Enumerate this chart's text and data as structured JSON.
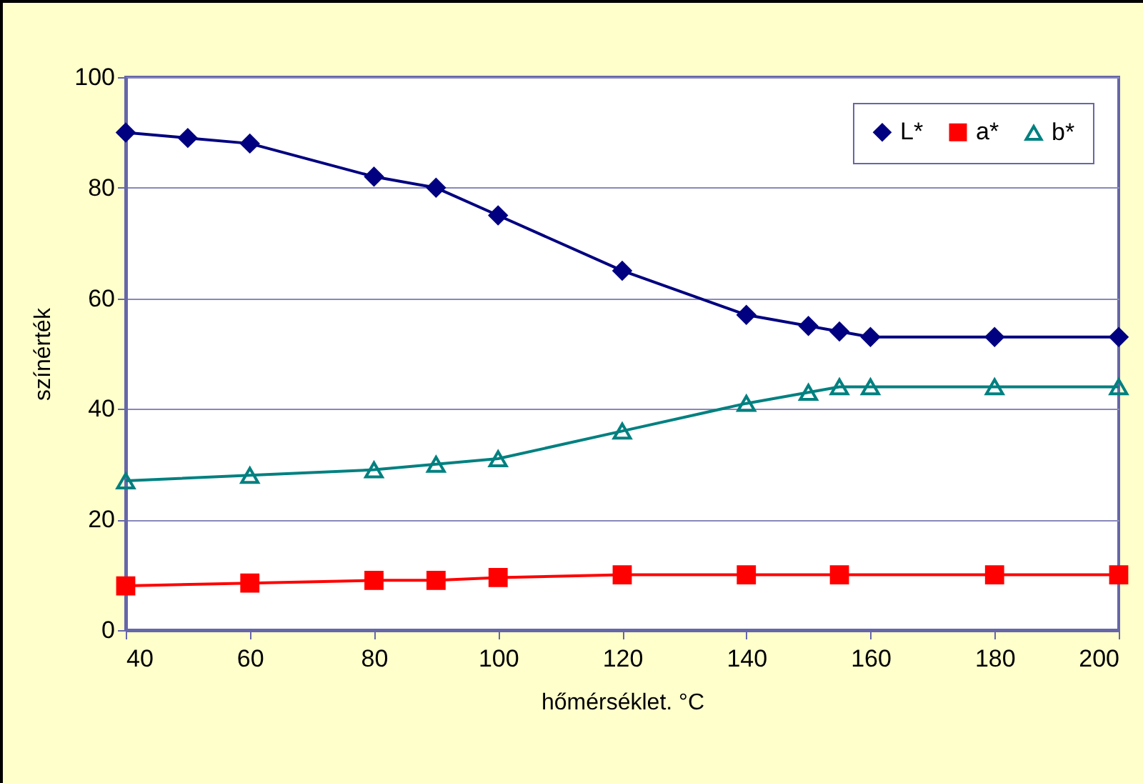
{
  "chart_data": {
    "type": "line",
    "xlabel": "hőmérséklet. °C",
    "ylabel": "színérték",
    "xlim": [
      40,
      200
    ],
    "xticks": [
      40,
      60,
      80,
      100,
      120,
      140,
      160,
      180,
      200
    ],
    "ylim": [
      0,
      100
    ],
    "yticks": [
      0,
      20,
      40,
      60,
      80,
      100
    ],
    "grid": "y",
    "legend": "top right",
    "line_style": "solid",
    "series": [
      {
        "name": "L*",
        "color": "#000080",
        "marker": "diamond",
        "x": [
          40,
          50,
          60,
          80,
          90,
          100,
          120,
          140,
          150,
          155,
          160,
          180,
          200
        ],
        "values": [
          90,
          89,
          88,
          82,
          80,
          75,
          65,
          57,
          55,
          54,
          53,
          53,
          53
        ]
      },
      {
        "name": "a*",
        "color": "#ff0000",
        "marker": "square",
        "x": [
          40,
          60,
          80,
          90,
          100,
          120,
          140,
          155,
          180,
          200
        ],
        "values": [
          8,
          8.5,
          9,
          9,
          9.5,
          10,
          10,
          10,
          10,
          10
        ]
      },
      {
        "name": "b*",
        "color": "#008080",
        "marker": "triangle",
        "x": [
          40,
          60,
          80,
          90,
          100,
          120,
          140,
          150,
          155,
          160,
          180,
          200
        ],
        "values": [
          27,
          28,
          29,
          30,
          31,
          36,
          41,
          43,
          44,
          44,
          44,
          44
        ]
      }
    ]
  }
}
